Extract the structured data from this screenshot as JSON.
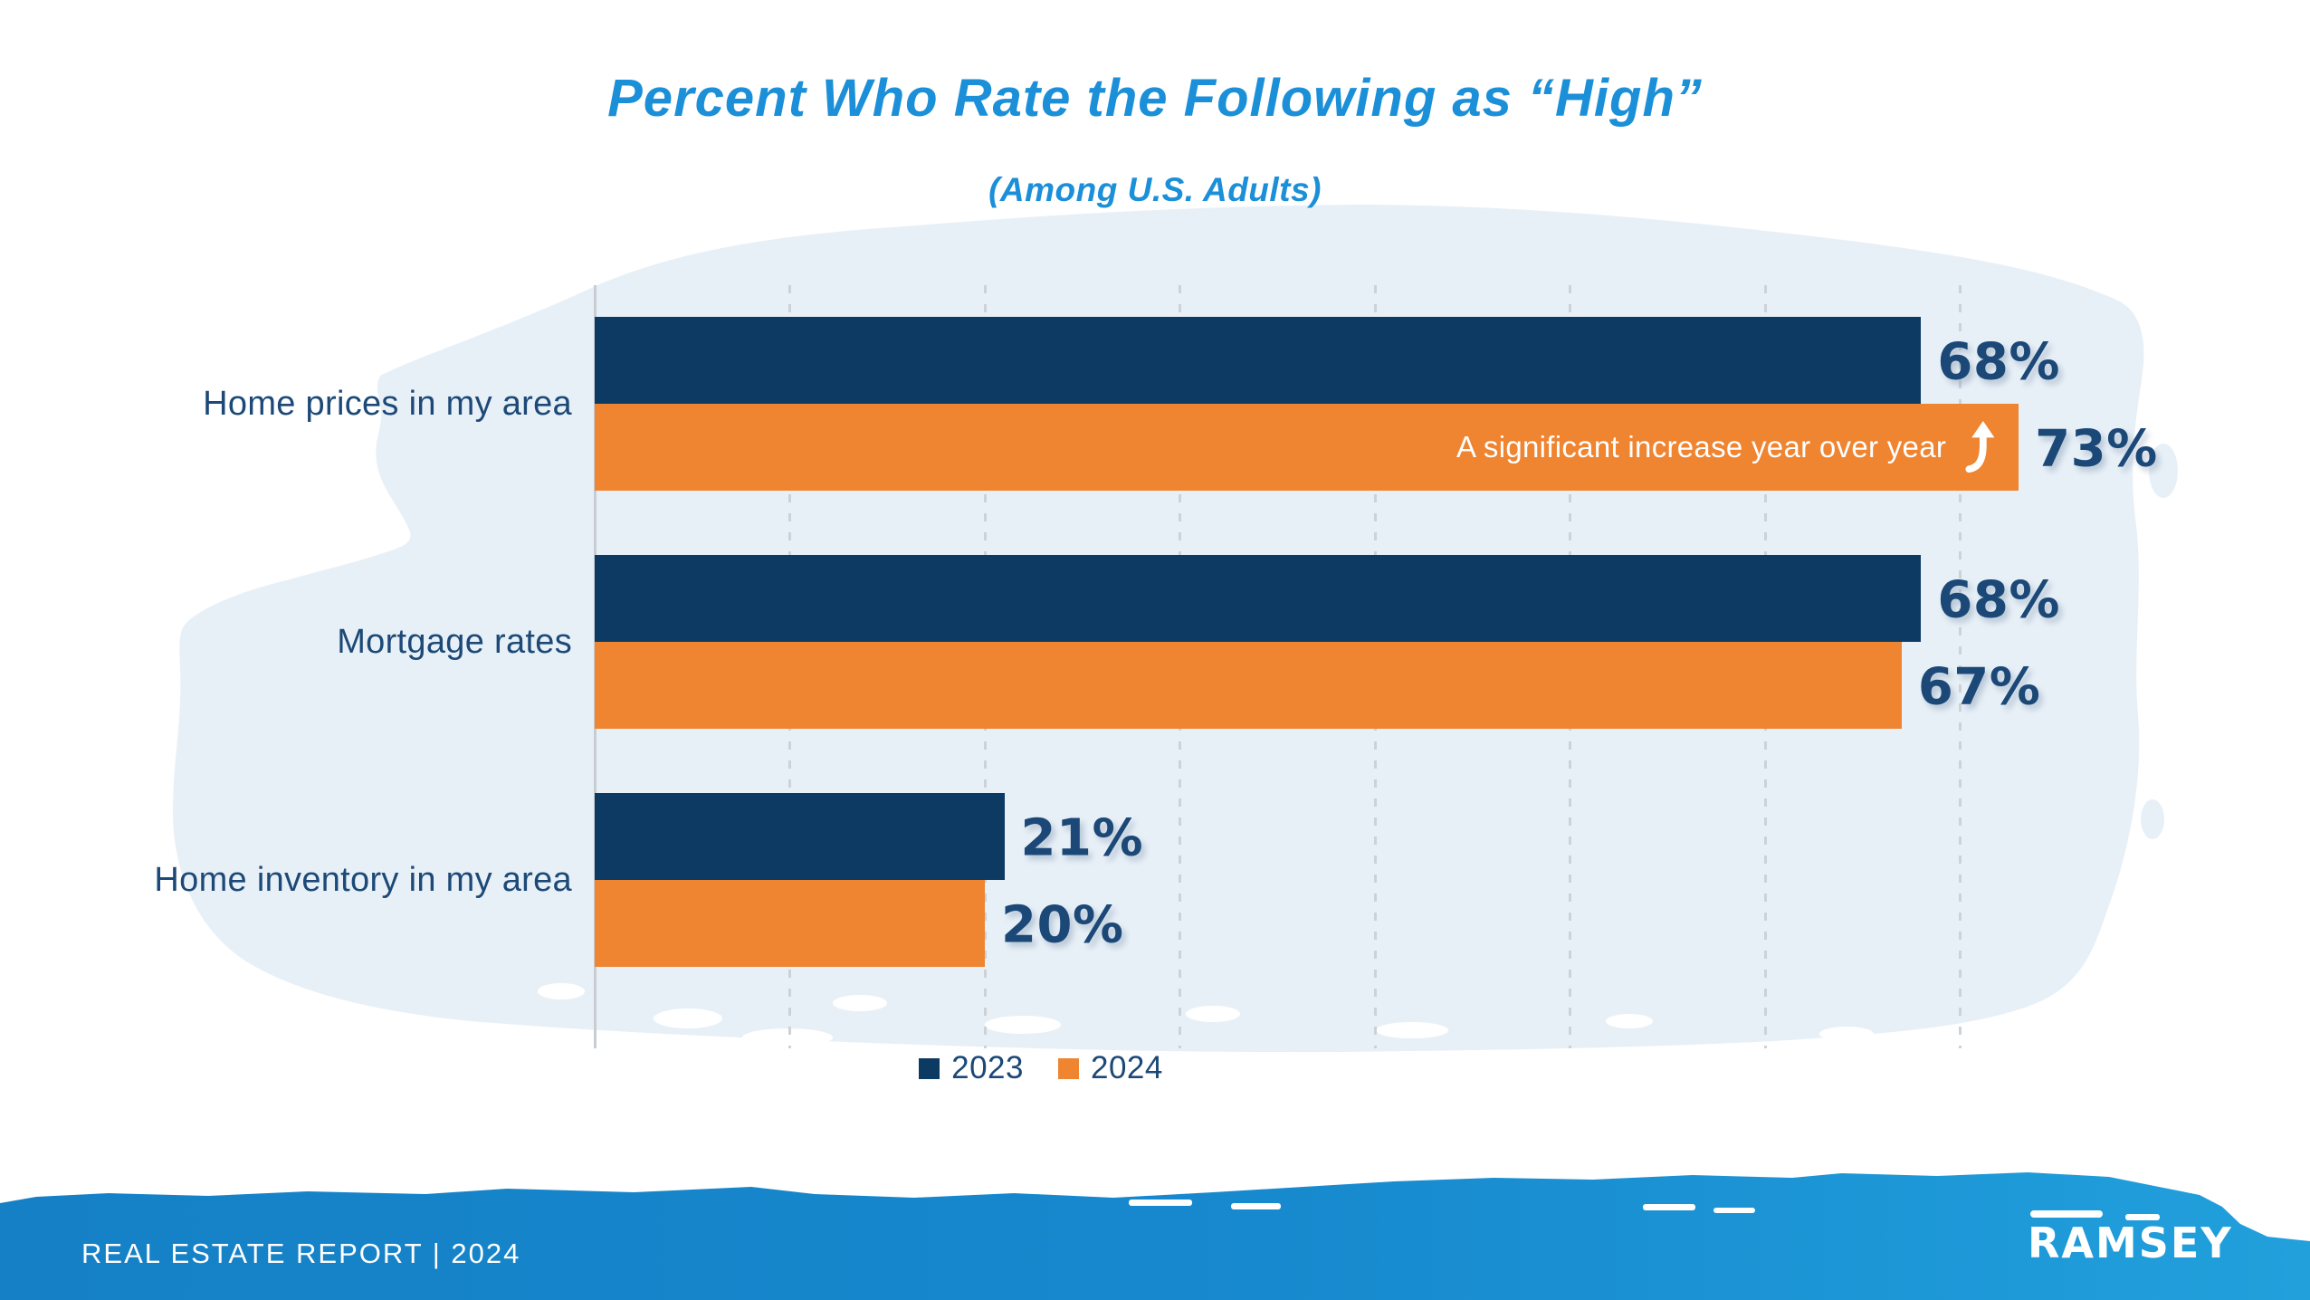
{
  "header": {
    "title": "Percent Who Rate the Following as “High”",
    "subtitle": "(Among U.S. Adults)"
  },
  "chart_data": {
    "type": "bar",
    "orientation": "horizontal",
    "title": "Percent Who Rate the Following as “High”",
    "subtitle": "(Among U.S. Adults)",
    "categories": [
      "Home prices in my area",
      "Mortgage rates",
      "Home inventory in my area"
    ],
    "series": [
      {
        "name": "2023",
        "color": "#0D3A63",
        "values": [
          68,
          68,
          21
        ],
        "labels": [
          "68%",
          "68%",
          "21%"
        ]
      },
      {
        "name": "2024",
        "color": "#EF8431",
        "values": [
          73,
          67,
          20
        ],
        "labels": [
          "73%",
          "67%",
          "20%"
        ]
      }
    ],
    "value_suffix": "%",
    "xlim": [
      0,
      73
    ],
    "gridlines": [
      10,
      20,
      30,
      40,
      50,
      60,
      70
    ],
    "grid_style": "dashed-vertical",
    "axis_labels_shown": false,
    "legend_position": "bottom-center",
    "annotation": {
      "text": "A significant increase year over year",
      "icon": "curved-up-arrow-icon",
      "series": "2024",
      "category": "Home prices in my area"
    }
  },
  "legend": {
    "items": [
      {
        "label": "2023",
        "color": "#0D3A63"
      },
      {
        "label": "2024",
        "color": "#EF8431"
      }
    ]
  },
  "footer": {
    "report_label": "REAL ESTATE REPORT | 2024",
    "brand": "RAMSEY"
  },
  "colors": {
    "title_blue": "#1B8FD8",
    "bar_2023_navy": "#0D3A63",
    "bar_2024_orange": "#EF8431",
    "text_navy": "#1B4877",
    "category_label_navy": "#1C4977",
    "annotation_text": "#FFFFFF",
    "splash_light_blue": "#E8F0F7",
    "gridline_gray": "#CCD2D6",
    "footer_blue_left": "#1580C6",
    "footer_blue_right": "#21A0DC"
  }
}
